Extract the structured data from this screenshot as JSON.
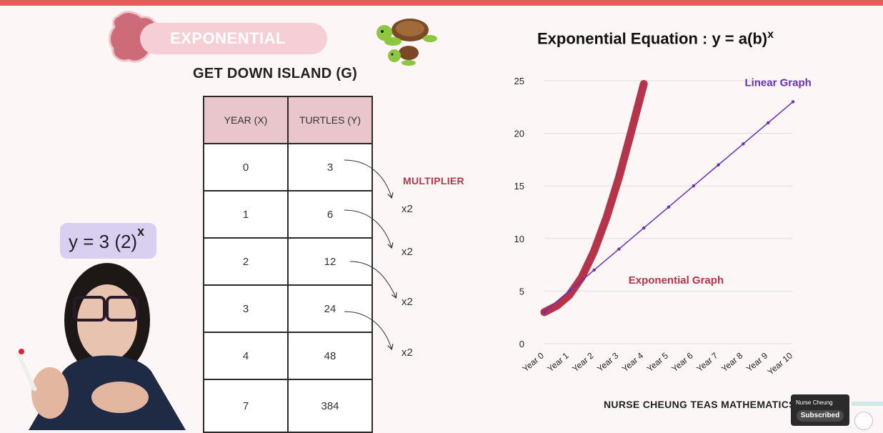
{
  "header": {
    "section_label": "EXPONENTIAL",
    "island_title": "GET DOWN ISLAND (G)"
  },
  "table": {
    "headers": [
      "YEAR (X)",
      "TURTLES (Y)"
    ],
    "rows": [
      [
        "0",
        "3"
      ],
      [
        "1",
        "6"
      ],
      [
        "2",
        "12"
      ],
      [
        "3",
        "24"
      ],
      [
        "4",
        "48"
      ],
      [
        "7",
        "384"
      ]
    ]
  },
  "multiplier": {
    "label": "MULTIPLIER",
    "factors": [
      "x2",
      "x2",
      "x2",
      "x2"
    ]
  },
  "equation": {
    "base": "y = 3 (2)",
    "exponent": "x"
  },
  "chart_title": {
    "base": "Exponential Equation : y = a(b)",
    "exponent": "x"
  },
  "chart_data": {
    "type": "line",
    "title": "Exponential Equation : y = a(b)x",
    "categories": [
      "Year 0",
      "Year 1",
      "Year 2",
      "Year 3",
      "Year 4",
      "Year 5",
      "Year 6",
      "Year 7",
      "Year 8",
      "Year 9",
      "Year 10"
    ],
    "y_ticks": [
      "0",
      "5",
      "10",
      "15",
      "20",
      "25"
    ],
    "ylim": [
      0,
      25
    ],
    "grid": true,
    "series": [
      {
        "name": "Linear Graph",
        "color": "#6a2fb5",
        "x": [
          0,
          1,
          2,
          3,
          4,
          5,
          6,
          7,
          8,
          9,
          10
        ],
        "values": [
          3,
          5,
          7,
          9,
          11,
          13,
          15,
          17,
          19,
          21,
          23
        ]
      },
      {
        "name": "Exponential Graph",
        "color": "#b5344a",
        "x": [
          0,
          0.5,
          1,
          1.5,
          2,
          2.5,
          3,
          3.5,
          4
        ],
        "values": [
          3,
          3.6,
          4.6,
          6.3,
          8.8,
          12,
          15.8,
          20.2,
          24.7
        ]
      }
    ]
  },
  "footer": {
    "brand": "NURSE CHEUNG TEAS MATHEMATICS",
    "channel_name": "Nurse Cheung",
    "subscribe_label": "Subscribed"
  }
}
